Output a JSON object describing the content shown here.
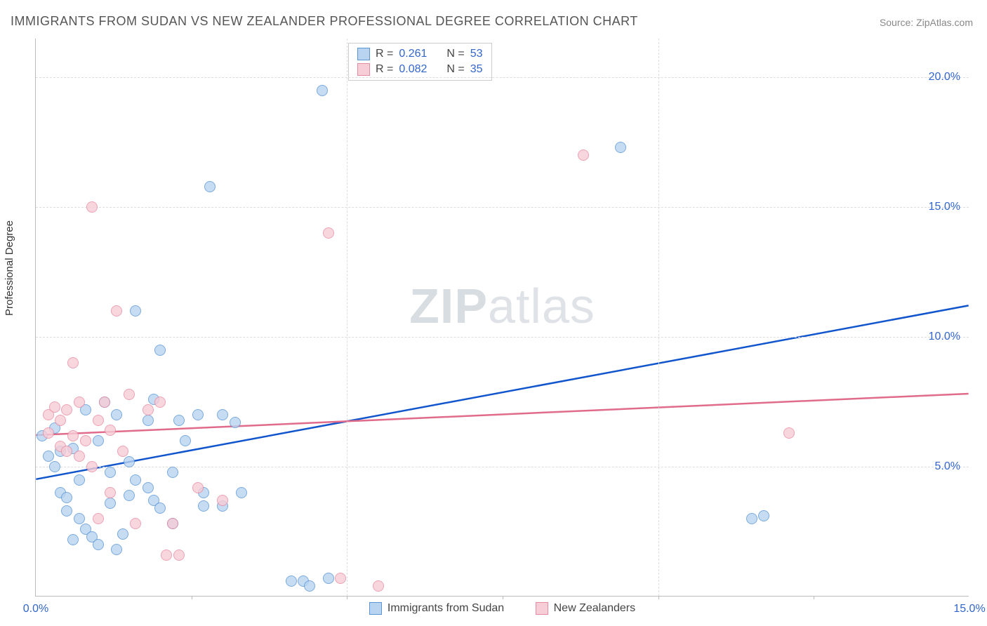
{
  "title": "IMMIGRANTS FROM SUDAN VS NEW ZEALANDER PROFESSIONAL DEGREE CORRELATION CHART",
  "source": "Source: ZipAtlas.com",
  "ylabel": "Professional Degree",
  "watermark_a": "ZIP",
  "watermark_b": "atlas",
  "chart": {
    "type": "scatter",
    "xlim": [
      0,
      15
    ],
    "ylim": [
      0,
      21.5
    ],
    "x_ticks": [
      0,
      5,
      10,
      15
    ],
    "x_tick_labels": [
      "0.0%",
      "",
      "",
      "15.0%"
    ],
    "y_ticks": [
      5,
      10,
      15,
      20
    ],
    "y_tick_labels": [
      "5.0%",
      "10.0%",
      "15.0%",
      "20.0%"
    ],
    "grid_color": "#dddddd",
    "axis_color": "#bbbbbb",
    "background": "#ffffff",
    "series": [
      {
        "name": "Immigrants from Sudan",
        "fill": "#b9d4f1",
        "stroke": "#5a96d6",
        "line_color": "#1155cc",
        "r_label": "R =",
        "r_value": "0.261",
        "n_label": "N =",
        "n_value": "53",
        "regression": {
          "x1": 0,
          "y1": 4.5,
          "x2": 15,
          "y2": 11.2
        },
        "points": [
          [
            0.1,
            6.2
          ],
          [
            0.2,
            5.4
          ],
          [
            0.3,
            6.5
          ],
          [
            0.3,
            5.0
          ],
          [
            0.4,
            5.6
          ],
          [
            0.4,
            4.0
          ],
          [
            0.5,
            3.8
          ],
          [
            0.5,
            3.3
          ],
          [
            0.6,
            5.7
          ],
          [
            0.6,
            2.2
          ],
          [
            0.7,
            4.5
          ],
          [
            0.7,
            3.0
          ],
          [
            0.8,
            7.2
          ],
          [
            0.8,
            2.6
          ],
          [
            0.9,
            2.3
          ],
          [
            1.0,
            6.0
          ],
          [
            1.0,
            2.0
          ],
          [
            1.1,
            7.5
          ],
          [
            1.2,
            4.8
          ],
          [
            1.2,
            3.6
          ],
          [
            1.3,
            7.0
          ],
          [
            1.3,
            1.8
          ],
          [
            1.4,
            2.4
          ],
          [
            1.5,
            5.2
          ],
          [
            1.5,
            3.9
          ],
          [
            1.6,
            4.5
          ],
          [
            1.6,
            11.0
          ],
          [
            1.8,
            6.8
          ],
          [
            1.8,
            4.2
          ],
          [
            1.9,
            3.7
          ],
          [
            1.9,
            7.6
          ],
          [
            2.0,
            9.5
          ],
          [
            2.0,
            3.4
          ],
          [
            2.2,
            4.8
          ],
          [
            2.2,
            2.8
          ],
          [
            2.3,
            6.8
          ],
          [
            2.4,
            6.0
          ],
          [
            2.6,
            7.0
          ],
          [
            2.7,
            4.0
          ],
          [
            2.7,
            3.5
          ],
          [
            2.8,
            15.8
          ],
          [
            3.0,
            7.0
          ],
          [
            3.0,
            3.5
          ],
          [
            3.2,
            6.7
          ],
          [
            3.3,
            4.0
          ],
          [
            4.1,
            0.6
          ],
          [
            4.3,
            0.6
          ],
          [
            4.4,
            0.4
          ],
          [
            4.6,
            19.5
          ],
          [
            4.7,
            0.7
          ],
          [
            9.4,
            17.3
          ],
          [
            11.5,
            3.0
          ],
          [
            11.7,
            3.1
          ]
        ]
      },
      {
        "name": "New Zealanders",
        "fill": "#f7cdd7",
        "stroke": "#e88ba1",
        "line_color": "#e06b8a",
        "r_label": "R =",
        "r_value": "0.082",
        "n_label": "N =",
        "n_value": "35",
        "regression": {
          "x1": 0,
          "y1": 6.2,
          "x2": 15,
          "y2": 7.8
        },
        "points": [
          [
            0.2,
            7.0
          ],
          [
            0.2,
            6.3
          ],
          [
            0.3,
            7.3
          ],
          [
            0.4,
            5.8
          ],
          [
            0.4,
            6.8
          ],
          [
            0.5,
            7.2
          ],
          [
            0.5,
            5.6
          ],
          [
            0.6,
            9.0
          ],
          [
            0.6,
            6.2
          ],
          [
            0.7,
            7.5
          ],
          [
            0.7,
            5.4
          ],
          [
            0.8,
            6.0
          ],
          [
            0.9,
            15.0
          ],
          [
            0.9,
            5.0
          ],
          [
            1.0,
            6.8
          ],
          [
            1.0,
            3.0
          ],
          [
            1.1,
            7.5
          ],
          [
            1.2,
            6.4
          ],
          [
            1.2,
            4.0
          ],
          [
            1.3,
            11.0
          ],
          [
            1.4,
            5.6
          ],
          [
            1.5,
            7.8
          ],
          [
            1.6,
            2.8
          ],
          [
            1.8,
            7.2
          ],
          [
            2.0,
            7.5
          ],
          [
            2.1,
            1.6
          ],
          [
            2.2,
            2.8
          ],
          [
            2.3,
            1.6
          ],
          [
            2.6,
            4.2
          ],
          [
            3.0,
            3.7
          ],
          [
            4.7,
            14.0
          ],
          [
            4.9,
            0.7
          ],
          [
            5.5,
            0.4
          ],
          [
            8.8,
            17.0
          ],
          [
            12.1,
            6.3
          ]
        ]
      }
    ]
  },
  "bottom_legend": {
    "a": "Immigrants from Sudan",
    "b": "New Zealanders"
  }
}
